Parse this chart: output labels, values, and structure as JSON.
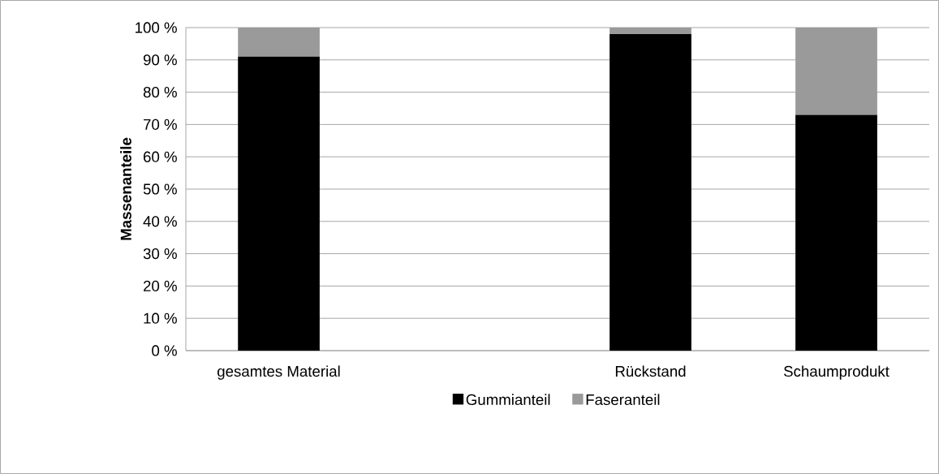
{
  "chart_data": {
    "type": "bar",
    "stacked": true,
    "ylabel": "Massenanteile",
    "categories": [
      "gesamtes Material",
      null,
      "Rückstand",
      "Schaumprodukt"
    ],
    "series": [
      {
        "name": "Gummianteil",
        "color": "#000000",
        "values": [
          91,
          null,
          98,
          73
        ]
      },
      {
        "name": "Faseranteil",
        "color": "#9a9a9a",
        "values": [
          9,
          null,
          2,
          27
        ]
      }
    ],
    "ylim": [
      0,
      100
    ],
    "yticks": [
      {
        "value": 0,
        "label": "0 %"
      },
      {
        "value": 10,
        "label": "10 %"
      },
      {
        "value": 20,
        "label": "20 %"
      },
      {
        "value": 30,
        "label": "30 %"
      },
      {
        "value": 40,
        "label": "40 %"
      },
      {
        "value": 50,
        "label": "50 %"
      },
      {
        "value": 60,
        "label": "60 %"
      },
      {
        "value": 70,
        "label": "70 %"
      },
      {
        "value": 80,
        "label": "80 %"
      },
      {
        "value": 90,
        "label": "90 %"
      },
      {
        "value": 100,
        "label": "100 %"
      }
    ],
    "grid": "y",
    "legend": "bottom"
  }
}
